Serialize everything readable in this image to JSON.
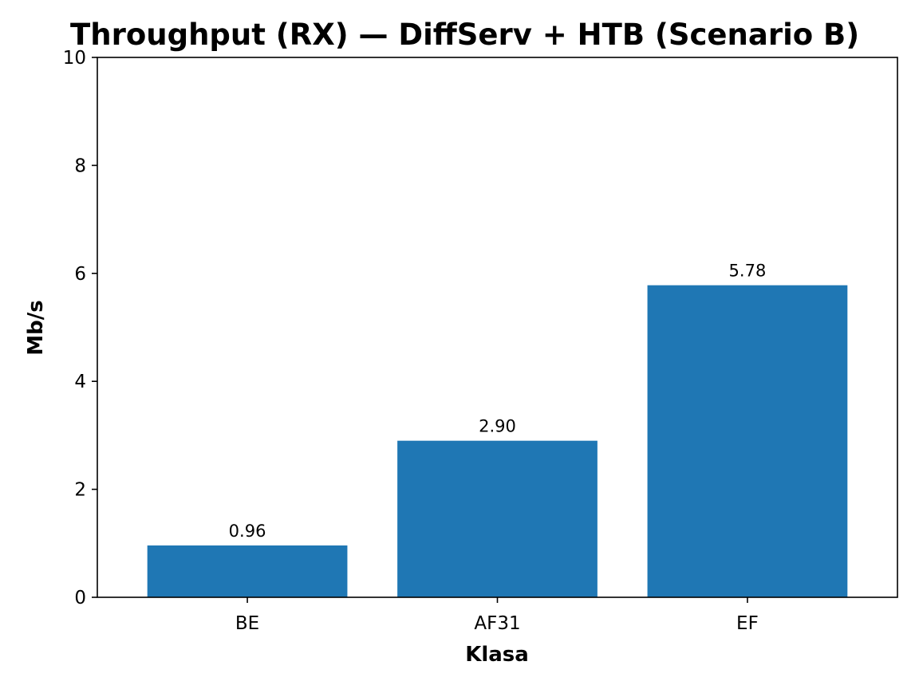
{
  "chart_data": {
    "type": "bar",
    "title": "Throughput (RX) — DiffServ + HTB (Scenario B)",
    "xlabel": "Klasa",
    "ylabel": "Mb/s",
    "categories": [
      "BE",
      "AF31",
      "EF"
    ],
    "values": [
      0.96,
      2.9,
      5.78
    ],
    "value_labels": [
      "0.96",
      "2.90",
      "5.78"
    ],
    "ylim": [
      0,
      10
    ],
    "yticks": [
      0,
      2,
      4,
      6,
      8,
      10
    ],
    "ytick_labels": [
      "0",
      "2",
      "4",
      "6",
      "8",
      "10"
    ],
    "grid": false,
    "legend": "none",
    "bar_color": "#1f77b4"
  }
}
